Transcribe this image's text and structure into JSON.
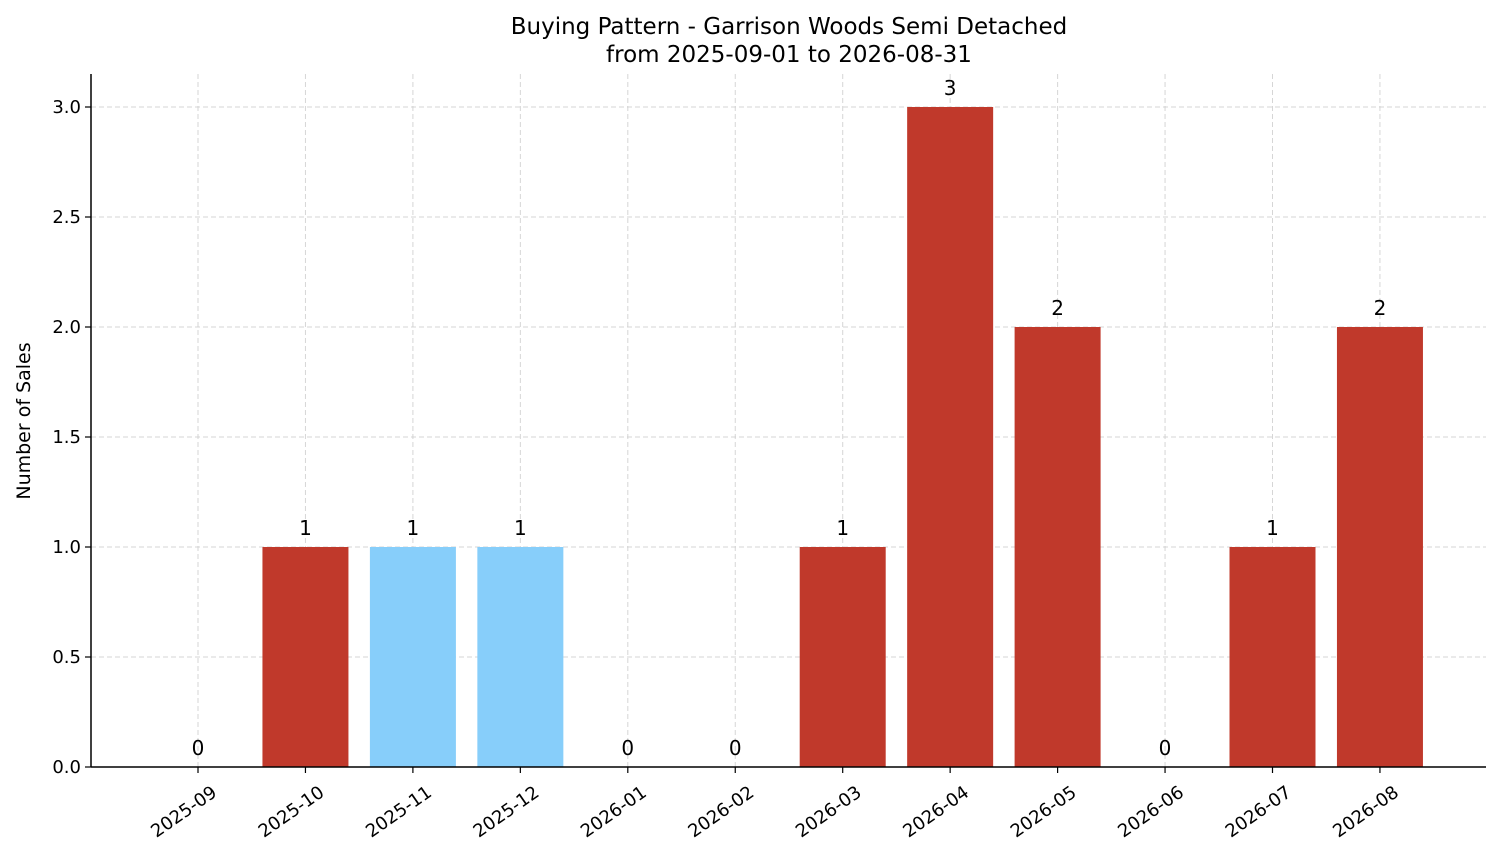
{
  "chart_data": {
    "type": "bar",
    "title": "Buying Pattern - Garrison Woods Semi Detached",
    "subtitle": "from 2025-09-01 to 2026-08-31",
    "xlabel": "",
    "ylabel": "Number of Sales",
    "categories": [
      "2025-09",
      "2025-10",
      "2025-11",
      "2025-12",
      "2026-01",
      "2026-02",
      "2026-03",
      "2026-04",
      "2026-05",
      "2026-06",
      "2026-07",
      "2026-08"
    ],
    "values": [
      0,
      1,
      1,
      1,
      0,
      0,
      1,
      3,
      2,
      0,
      1,
      2
    ],
    "bar_colors": [
      "#c0392b",
      "#c0392b",
      "#87cefa",
      "#87cefa",
      "#c0392b",
      "#c0392b",
      "#c0392b",
      "#c0392b",
      "#c0392b",
      "#c0392b",
      "#c0392b",
      "#c0392b"
    ],
    "data_labels": [
      "0",
      "1",
      "1",
      "1",
      "0",
      "0",
      "1",
      "3",
      "2",
      "0",
      "1",
      "2"
    ],
    "yticks": [
      "0.0",
      "0.5",
      "1.0",
      "1.5",
      "2.0",
      "2.5",
      "3.0"
    ],
    "ylim": [
      0,
      3.15
    ],
    "grid": true
  }
}
